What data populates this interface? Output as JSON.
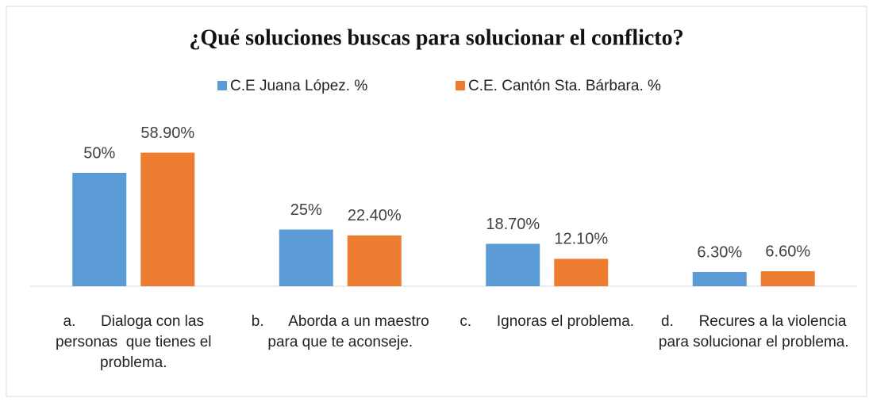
{
  "chart_data": {
    "type": "bar",
    "title": "¿Qué soluciones buscas para solucionar el conflicto?",
    "categories": [
      "a.      Dialoga con las personas  que tienes el problema.",
      "b.      Aborda a un maestro para que te aconseje.",
      "c.      Ignoras el problema.",
      "d.      Recures a la violencia para solucionar el problema."
    ],
    "series": [
      {
        "name": "C.E Juana López. %",
        "color": "#5b9bd5",
        "values": [
          50,
          25,
          18.7,
          6.3
        ],
        "value_labels": [
          "50%",
          "25%",
          "18.70%",
          "6.30%"
        ]
      },
      {
        "name": "C.E. Cantón Sta. Bárbara. %",
        "color": "#ed7d31",
        "values": [
          58.9,
          22.4,
          12.1,
          6.6
        ],
        "value_labels": [
          "58.90%",
          "22.40%",
          "12.10%",
          "6.60%"
        ]
      }
    ],
    "legend": "top"
  }
}
